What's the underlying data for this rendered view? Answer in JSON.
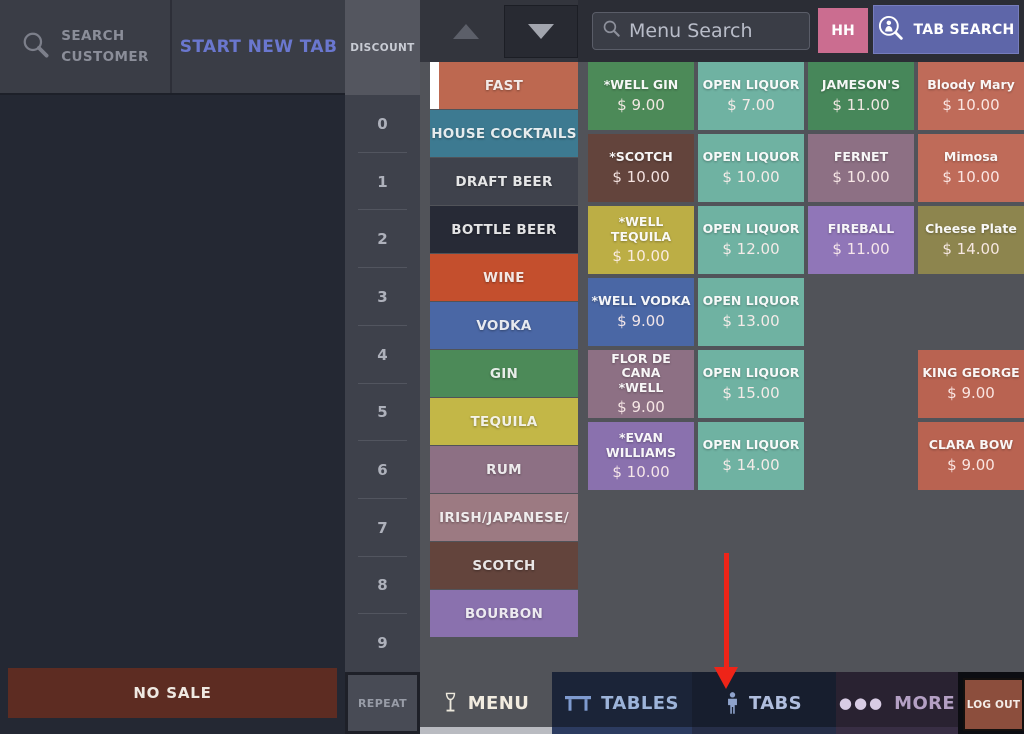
{
  "header": {
    "search_customer_line1": "SEARCH",
    "search_customer_line2": "CUSTOMER",
    "start_new_tab": "START NEW TAB"
  },
  "keypad": {
    "discount": "DISCOUNT",
    "digits": [
      "0",
      "1",
      "2",
      "3",
      "4",
      "5",
      "6",
      "7",
      "8",
      "9"
    ],
    "repeat": "REPEAT"
  },
  "order_panel": {
    "no_sale": "NO SALE"
  },
  "menu_search": {
    "placeholder": "Menu Search"
  },
  "buttons": {
    "hh": "HH",
    "tab_search": "TAB SEARCH"
  },
  "categories": [
    {
      "label": "FAST",
      "color": "#bd6850",
      "selected": true
    },
    {
      "label": "HOUSE COCKTAILS",
      "color": "#3d7a91"
    },
    {
      "label": "DRAFT BEER",
      "color": "#3f424c"
    },
    {
      "label": "BOTTLE BEER",
      "color": "#272a36"
    },
    {
      "label": "WINE",
      "color": "#c44f2d"
    },
    {
      "label": "VODKA",
      "color": "#4a67a5"
    },
    {
      "label": "GIN",
      "color": "#4c8a58"
    },
    {
      "label": "TEQUILA",
      "color": "#c3b747"
    },
    {
      "label": "RUM",
      "color": "#8d7084"
    },
    {
      "label": "IRISH/JAPANESE/",
      "color": "#9c7a82"
    },
    {
      "label": "SCOTCH",
      "color": "#63443c"
    },
    {
      "label": "BOURBON",
      "color": "#8a71ae"
    }
  ],
  "menu_tiles": [
    {
      "name": "*WELL GIN",
      "price": "$ 9.00",
      "color": "#4c8a58",
      "row": 1,
      "col": 1
    },
    {
      "name": "OPEN LIQUOR",
      "price": "$ 7.00",
      "color": "#6fb2a2",
      "row": 1,
      "col": 2
    },
    {
      "name": "JAMESON'S",
      "price": "$ 11.00",
      "color": "#47875a",
      "row": 1,
      "col": 3
    },
    {
      "name": "Bloody Mary",
      "price": "$ 10.00",
      "color": "#bf6b59",
      "row": 1,
      "col": 4
    },
    {
      "name": "*SCOTCH",
      "price": "$ 10.00",
      "color": "#63443c",
      "row": 2,
      "col": 1
    },
    {
      "name": "OPEN LIQUOR",
      "price": "$ 10.00",
      "color": "#6fb2a2",
      "row": 2,
      "col": 2
    },
    {
      "name": "FERNET",
      "price": "$ 10.00",
      "color": "#8d7084",
      "row": 2,
      "col": 3
    },
    {
      "name": "Mimosa",
      "price": "$ 10.00",
      "color": "#bf6b59",
      "row": 2,
      "col": 4
    },
    {
      "name": "*WELL\nTEQUILA",
      "price": "$ 10.00",
      "color": "#bcae45",
      "row": 3,
      "col": 1
    },
    {
      "name": "OPEN LIQUOR",
      "price": "$ 12.00",
      "color": "#6fb2a2",
      "row": 3,
      "col": 2
    },
    {
      "name": "FIREBALL",
      "price": "$ 11.00",
      "color": "#9076b8",
      "row": 3,
      "col": 3
    },
    {
      "name": "Cheese Plate",
      "price": "$ 14.00",
      "color": "#8d854e",
      "row": 3,
      "col": 4
    },
    {
      "name": "*WELL VODKA",
      "price": "$ 9.00",
      "color": "#4a67a5",
      "row": 4,
      "col": 1
    },
    {
      "name": "OPEN LIQUOR",
      "price": "$ 13.00",
      "color": "#6fb2a2",
      "row": 4,
      "col": 2
    },
    {
      "name": "FLOR DE CANA\n*WELL",
      "price": "$ 9.00",
      "color": "#8d7084",
      "row": 5,
      "col": 1
    },
    {
      "name": "OPEN LIQUOR",
      "price": "$ 15.00",
      "color": "#6fb2a2",
      "row": 5,
      "col": 2
    },
    {
      "name": "KING GEORGE",
      "price": "$ 9.00",
      "color": "#b96351",
      "row": 5,
      "col": 4
    },
    {
      "name": "*EVAN\nWILLIAMS",
      "price": "$ 10.00",
      "color": "#8a71ae",
      "row": 6,
      "col": 1
    },
    {
      "name": "OPEN LIQUOR",
      "price": "$ 14.00",
      "color": "#6fb2a2",
      "row": 6,
      "col": 2
    },
    {
      "name": "CLARA BOW",
      "price": "$ 9.00",
      "color": "#b96351",
      "row": 6,
      "col": 4
    }
  ],
  "bottom_nav": {
    "items": [
      {
        "label": "MENU",
        "icon": "wine-glass-icon",
        "active": true,
        "bg": "#515359",
        "strip": "#b9bbc1",
        "text": "#f2ece0",
        "icon_color": "#ece8dc"
      },
      {
        "label": "TABLES",
        "icon": "table-icon",
        "active": false,
        "bg": "#1b2438",
        "strip": "#2c3b60",
        "text": "#9db4da",
        "icon_color": "#7f9bd0"
      },
      {
        "label": "TABS",
        "icon": "person-icon",
        "active": false,
        "bg": "#171e2e",
        "strip": "#262e48",
        "text": "#b0bede",
        "icon_color": "#8fa3cc"
      },
      {
        "label": "MORE",
        "icon": "dots-icon",
        "active": false,
        "bg": "#292231",
        "strip": "#382e44",
        "text": "#b4a0c4",
        "icon_color": "#d8cce4"
      }
    ],
    "logout": "LOG OUT"
  },
  "annotation": {
    "arrow_color": "#ee2418",
    "points_to": "TABS"
  }
}
